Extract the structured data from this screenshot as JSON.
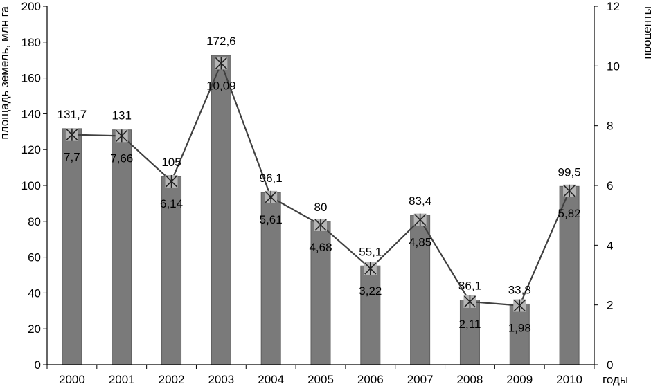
{
  "chart_data": {
    "type": "bar",
    "categories": [
      "2000",
      "2001",
      "2002",
      "2003",
      "2004",
      "2005",
      "2006",
      "2007",
      "2008",
      "2009",
      "2010"
    ],
    "series": [
      {
        "kind": "bar",
        "axis": "left",
        "values": [
          131.7,
          131,
          105,
          172.6,
          96.1,
          80,
          55.1,
          83.4,
          36.1,
          33.8,
          99.5
        ],
        "labels": [
          "131,7",
          "131",
          "105",
          "172,6",
          "96,1",
          "80",
          "55,1",
          "83,4",
          "36,1",
          "33,8",
          "99,5"
        ],
        "color": "#7a7a7a"
      },
      {
        "kind": "line",
        "axis": "right",
        "values": [
          7.7,
          7.66,
          6.14,
          10.09,
          5.61,
          4.68,
          3.22,
          4.85,
          2.11,
          1.98,
          5.82
        ],
        "labels": [
          "7,7",
          "7,66",
          "6,14",
          "10,09",
          "5,61",
          "4,68",
          "3,22",
          "4,85",
          "2,11",
          "1,98",
          "5,82"
        ],
        "color": "#404040",
        "marker": "asterisk"
      }
    ],
    "ylabel": "площадь земель, млн га",
    "y2label": "проценты",
    "xlabel": "годы",
    "ylim": [
      0,
      200
    ],
    "y2lim": [
      0,
      12
    ],
    "yticks": [
      "0",
      "20",
      "40",
      "60",
      "80",
      "100",
      "120",
      "140",
      "160",
      "180",
      "200"
    ],
    "y2ticks": [
      "0",
      "2",
      "4",
      "6",
      "8",
      "10",
      "12"
    ],
    "grid": false,
    "legend": "none"
  }
}
